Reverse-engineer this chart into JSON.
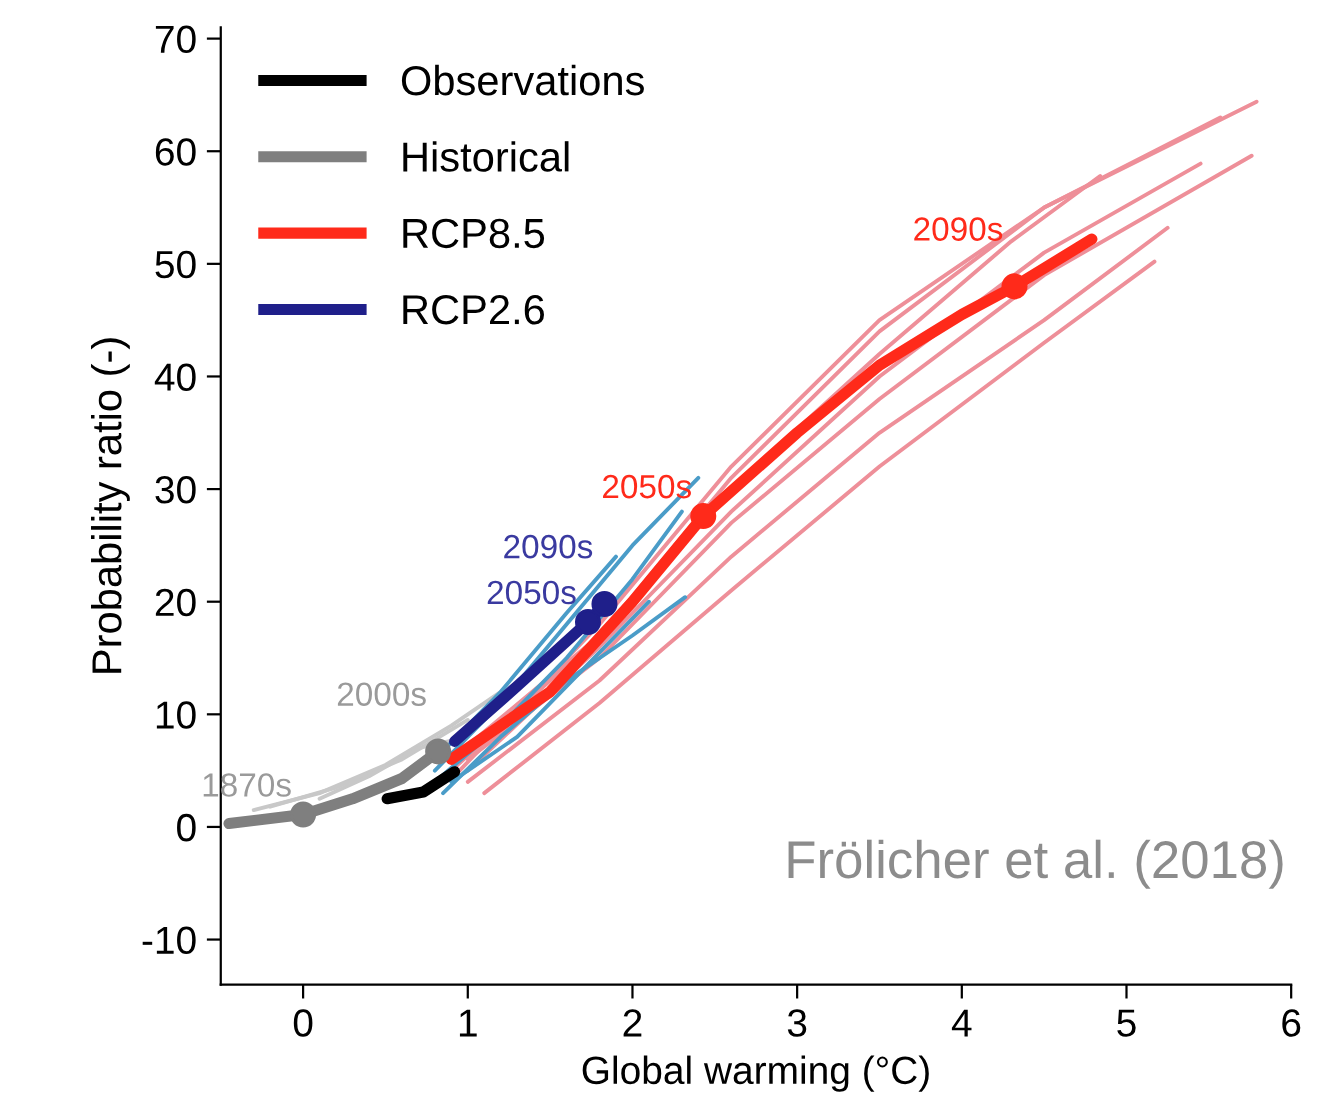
{
  "chart_data": {
    "type": "line",
    "xlabel": "Global warming (°C)",
    "ylabel": "Probability ratio (-)",
    "xlim": [
      -0.5,
      6
    ],
    "ylim": [
      -14,
      71
    ],
    "xticks": [
      0,
      1,
      2,
      3,
      4,
      5,
      6
    ],
    "yticks": [
      -10,
      0,
      10,
      20,
      30,
      40,
      50,
      60,
      70
    ],
    "grid": false,
    "legend": "top left",
    "marker": "none",
    "line_style": "solid",
    "series": [
      {
        "color": "#c8c8c8",
        "x": [
          -0.3,
          0.1,
          0.5,
          0.9,
          1.2
        ],
        "values": [
          1.5,
          3,
          5.5,
          9,
          12
        ]
      },
      {
        "color": "#c8c8c8",
        "x": [
          -0.2,
          0.2,
          0.6,
          1.0
        ],
        "values": [
          1.8,
          3.5,
          6,
          9.5
        ]
      },
      {
        "color": "#c8c8c8",
        "x": [
          0.1,
          0.4,
          0.7,
          1.0
        ],
        "values": [
          2.5,
          4.5,
          7,
          8
        ]
      },
      {
        "color": "#ee8f99",
        "x": [
          0.9,
          1.8,
          2.6,
          3.5,
          4.5,
          5.79
        ],
        "values": [
          5,
          17,
          31,
          44,
          55,
          64.4
        ]
      },
      {
        "color": "#ee8f99",
        "x": [
          0.95,
          1.8,
          2.6,
          3.5,
          4.5,
          5.57
        ],
        "values": [
          5,
          18,
          32,
          45,
          55,
          63
        ]
      },
      {
        "color": "#ee8f99",
        "x": [
          1.0,
          1.8,
          2.6,
          3.5,
          4.5,
          5.76
        ],
        "values": [
          6,
          15,
          27,
          38,
          49,
          59.6
        ]
      },
      {
        "color": "#ee8f99",
        "x": [
          1.0,
          1.8,
          2.6,
          3.5,
          4.5,
          5.45
        ],
        "values": [
          5,
          16,
          28,
          40,
          51,
          58.9
        ]
      },
      {
        "color": "#ee8f99",
        "x": [
          1.0,
          1.8,
          2.6,
          3.5,
          4.5,
          5.25
        ],
        "values": [
          4,
          13,
          24,
          35,
          45,
          53.2
        ]
      },
      {
        "color": "#ee8f99",
        "x": [
          1.1,
          1.8,
          2.6,
          3.5,
          4.5,
          5.17
        ],
        "values": [
          3,
          11,
          21,
          32,
          43,
          50.2
        ]
      },
      {
        "color": "#ee8f99",
        "x": [
          0.9,
          1.8,
          2.6,
          3.5,
          4.3,
          4.84
        ],
        "values": [
          6,
          17,
          30,
          42,
          52,
          57.8
        ]
      },
      {
        "color": "#4a9cc8",
        "x": [
          0.8,
          1.2,
          1.6,
          2.0,
          2.4
        ],
        "values": [
          5,
          11,
          18,
          25,
          31
        ]
      },
      {
        "color": "#4a9cc8",
        "x": [
          0.8,
          1.2,
          1.6,
          2.0,
          2.3
        ],
        "values": [
          4,
          9,
          15,
          22,
          28
        ]
      },
      {
        "color": "#4a9cc8",
        "x": [
          0.85,
          1.2,
          1.6,
          2.0,
          2.32
        ],
        "values": [
          3,
          8,
          13,
          17,
          20.4
        ]
      },
      {
        "color": "#4a9cc8",
        "x": [
          0.8,
          1.2,
          1.6,
          1.9
        ],
        "values": [
          6,
          12,
          19,
          24
        ]
      },
      {
        "color": "#4a9cc8",
        "x": [
          0.9,
          1.3,
          1.7,
          2.1
        ],
        "values": [
          4,
          8,
          14,
          20
        ]
      },
      {
        "name": "Observations",
        "color": "#000000",
        "x": [
          0.51,
          0.73,
          0.92
        ],
        "values": [
          2.5,
          3.1,
          4.9
        ]
      },
      {
        "name": "Historical",
        "color": "#7f7f7f",
        "x": [
          -0.45,
          0,
          0.3,
          0.6,
          0.82
        ],
        "values": [
          0.3,
          1.1,
          2.5,
          4.3,
          6.7
        ]
      },
      {
        "name": "RCP8.5",
        "color": "#ff2a1a",
        "x": [
          0.9,
          1.5,
          2.0,
          2.43,
          3.0,
          3.5,
          4.0,
          4.32,
          4.79
        ],
        "values": [
          6,
          12,
          20,
          27.6,
          35,
          41,
          45.5,
          48,
          52.2
        ]
      },
      {
        "name": "RCP2.6",
        "color": "#1f1f8a",
        "x": [
          0.92,
          1.3,
          1.73,
          1.83
        ],
        "values": [
          7.6,
          12.5,
          18.2,
          19.8
        ]
      },
      {
        "type": "scatter",
        "marker": "circle",
        "color": "#7f7f7f",
        "x": [
          0,
          0.82
        ],
        "values": [
          1.1,
          6.7
        ]
      },
      {
        "type": "scatter",
        "marker": "circle",
        "color": "#1f1f8a",
        "x": [
          1.73,
          1.83
        ],
        "values": [
          18.2,
          19.8
        ]
      },
      {
        "type": "scatter",
        "marker": "circle",
        "color": "#ff2a1a",
        "x": [
          2.43,
          4.32
        ],
        "values": [
          27.6,
          48
        ]
      }
    ],
    "annotations": [
      {
        "text": "1870s",
        "x": 0,
        "y": 1.1
      },
      {
        "text": "2000s",
        "x": 0.82,
        "y": 6.7
      },
      {
        "text": "2050s",
        "x": 1.73,
        "y": 18.2
      },
      {
        "text": "2090s",
        "x": 1.83,
        "y": 19.8
      },
      {
        "text": "2050s",
        "x": 2.43,
        "y": 27.6
      },
      {
        "text": "2090s",
        "x": 4.32,
        "y": 48
      },
      "Frölicher et al. (2018)"
    ]
  }
}
